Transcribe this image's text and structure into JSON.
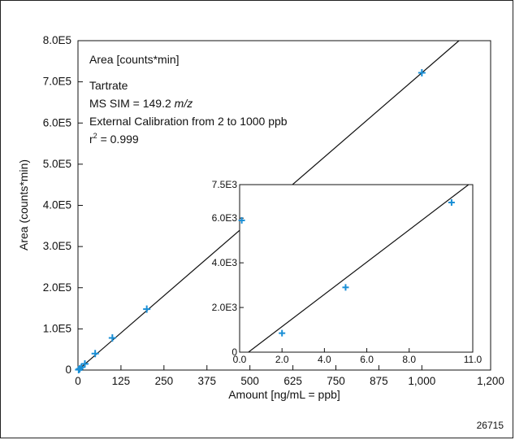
{
  "chart_data": [
    {
      "type": "scatter",
      "xlabel": "Amount [ng/mL = ppb]",
      "ylabel": "Area (counts*min)",
      "xlim": [
        0,
        1200
      ],
      "ylim": [
        0,
        800000
      ],
      "xticks": [
        0,
        125,
        250,
        375,
        500,
        625,
        750,
        875,
        1000,
        1200
      ],
      "xtick_labels": [
        "0",
        "125",
        "250",
        "375",
        "500",
        "625",
        "750",
        "875",
        "1,000",
        "1,200"
      ],
      "yticks": [
        0,
        100000,
        200000,
        300000,
        400000,
        500000,
        600000,
        700000,
        800000
      ],
      "ytick_labels": [
        "0",
        "1.0E5",
        "2.0E5",
        "3.0E5",
        "4.0E5",
        "5.0E5",
        "6.0E5",
        "7.0E5",
        "8.0E5"
      ],
      "series": [
        {
          "x": [
            2,
            5,
            10,
            20,
            50,
            100,
            200,
            1000
          ],
          "y": [
            900,
            3000,
            7000,
            15000,
            40000,
            78000,
            148000,
            722000
          ],
          "color": "#1a8fd6",
          "marker": "plus"
        }
      ],
      "fit_line": {
        "slope": 722,
        "intercept": 0
      },
      "annotations": {
        "area_label": "Area  [counts*min]",
        "compound": "Tartrate",
        "ms_sim_prefix": "MS SIM = 149.2 ",
        "ms_sim_unit": "m/z",
        "calibration": "External Calibration from 2 to 1000 ppb",
        "r_squared_prefix": "r",
        "r_squared_exp": "2",
        "r_squared_value": " = 0.999"
      }
    },
    {
      "type": "scatter",
      "inset": true,
      "xlim": [
        0,
        11
      ],
      "ylim": [
        0,
        7500
      ],
      "xticks": [
        0,
        2,
        4,
        6,
        8,
        11
      ],
      "xtick_labels": [
        "0.0",
        "2.0",
        "4.0",
        "6.0",
        "8.0",
        "11.0"
      ],
      "yticks": [
        0,
        2000,
        4000,
        6000,
        7500
      ],
      "ytick_labels": [
        "0",
        "2.0E3",
        "4.0E3",
        "6.0E3",
        "7.5E3"
      ],
      "series": [
        {
          "x": [
            0.1,
            2,
            5,
            10
          ],
          "y": [
            5900,
            850,
            2900,
            6700
          ],
          "color": "#1a8fd6",
          "marker": "plus"
        }
      ],
      "fit_line": {
        "slope": 722,
        "intercept": -300
      }
    }
  ],
  "figure_id": "26715"
}
